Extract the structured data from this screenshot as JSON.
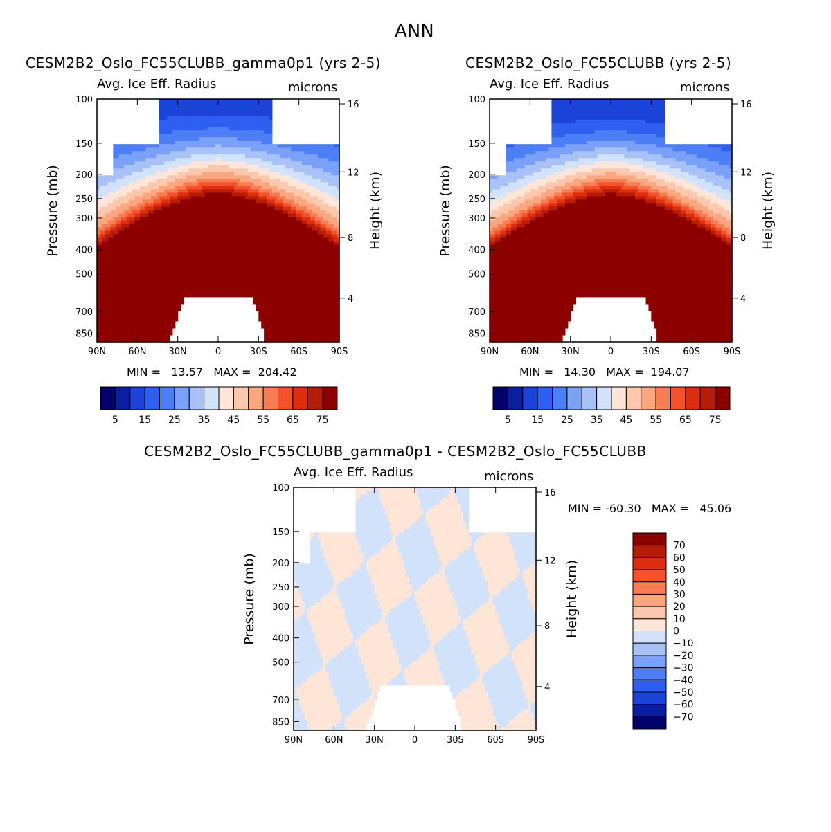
{
  "title": "ANN",
  "chart_data": [
    {
      "type": "heatmap",
      "title": "CESM2B2_Oslo_FC55CLUBB_gamma0p1 (yrs 2-5)",
      "variable": "Avg. Ice Eff. Radius",
      "units": "microns",
      "xlabel": "",
      "ylabel": "Pressure (mb)",
      "y2label": "Height (km)",
      "x_ticks": [
        "90N",
        "60N",
        "30N",
        "0",
        "30S",
        "60S",
        "90S"
      ],
      "y_ticks": [
        "100",
        "150",
        "200",
        "250",
        "300",
        "400",
        "500",
        "700",
        "850"
      ],
      "y2_ticks": [
        "16",
        "12",
        "8",
        "4"
      ],
      "min_label": "MIN =   13.57   MAX =  204.42",
      "min": 13.57,
      "max": 204.42,
      "colorbar_levels": [
        5,
        10,
        15,
        20,
        25,
        30,
        35,
        40,
        45,
        50,
        55,
        60,
        65,
        70,
        75
      ],
      "colorbar_labels": [
        "5",
        "15",
        "25",
        "35",
        "45",
        "55",
        "65",
        "75"
      ],
      "colors": [
        "#03006b",
        "#0a1fa0",
        "#1b43d8",
        "#2e5ff0",
        "#4d7ef5",
        "#7aa0f7",
        "#a8c2f8",
        "#d3e2fb",
        "#fde6d7",
        "#fcc8ad",
        "#fba67f",
        "#f97d52",
        "#f4522b",
        "#dd2e10",
        "#b51d06",
        "#8c0000"
      ]
    },
    {
      "type": "heatmap",
      "title": "CESM2B2_Oslo_FC55CLUBB (yrs 2-5)",
      "variable": "Avg. Ice Eff. Radius",
      "units": "microns",
      "ylabel": "Pressure (mb)",
      "y2label": "Height (km)",
      "x_ticks": [
        "90N",
        "60N",
        "30N",
        "0",
        "30S",
        "60S",
        "90S"
      ],
      "y_ticks": [
        "100",
        "150",
        "200",
        "250",
        "300",
        "400",
        "500",
        "700",
        "850"
      ],
      "y2_ticks": [
        "16",
        "12",
        "8",
        "4"
      ],
      "min_label": "MIN =   14.30   MAX =  194.07",
      "min": 14.3,
      "max": 194.07,
      "colorbar_labels": [
        "5",
        "15",
        "25",
        "35",
        "45",
        "55",
        "65",
        "75"
      ]
    },
    {
      "type": "heatmap",
      "title": "CESM2B2_Oslo_FC55CLUBB_gamma0p1 - CESM2B2_Oslo_FC55CLUBB",
      "variable": "Avg. Ice Eff. Radius",
      "units": "microns",
      "ylabel": "Pressure (mb)",
      "y2label": "Height (km)",
      "x_ticks": [
        "90N",
        "60N",
        "30N",
        "0",
        "30S",
        "60S",
        "90S"
      ],
      "y_ticks": [
        "100",
        "150",
        "200",
        "250",
        "300",
        "400",
        "500",
        "700",
        "850"
      ],
      "y2_ticks": [
        "16",
        "12",
        "8",
        "4"
      ],
      "min_label": "MIN = -60.30   MAX =   45.06",
      "min": -60.3,
      "max": 45.06,
      "colorbar_labels": [
        "70",
        "60",
        "50",
        "40",
        "30",
        "20",
        "10",
        "0",
        "-10",
        "-20",
        "-30",
        "-40",
        "-50",
        "-60",
        "-70"
      ],
      "colors": [
        "#8c0000",
        "#b51d06",
        "#dd2e10",
        "#f4522b",
        "#f97d52",
        "#fba67f",
        "#fcc8ad",
        "#fde6d7",
        "#d3e2fb",
        "#a8c2f8",
        "#7aa0f7",
        "#4d7ef5",
        "#2e5ff0",
        "#1b43d8",
        "#0a1fa0",
        "#03006b"
      ]
    }
  ]
}
